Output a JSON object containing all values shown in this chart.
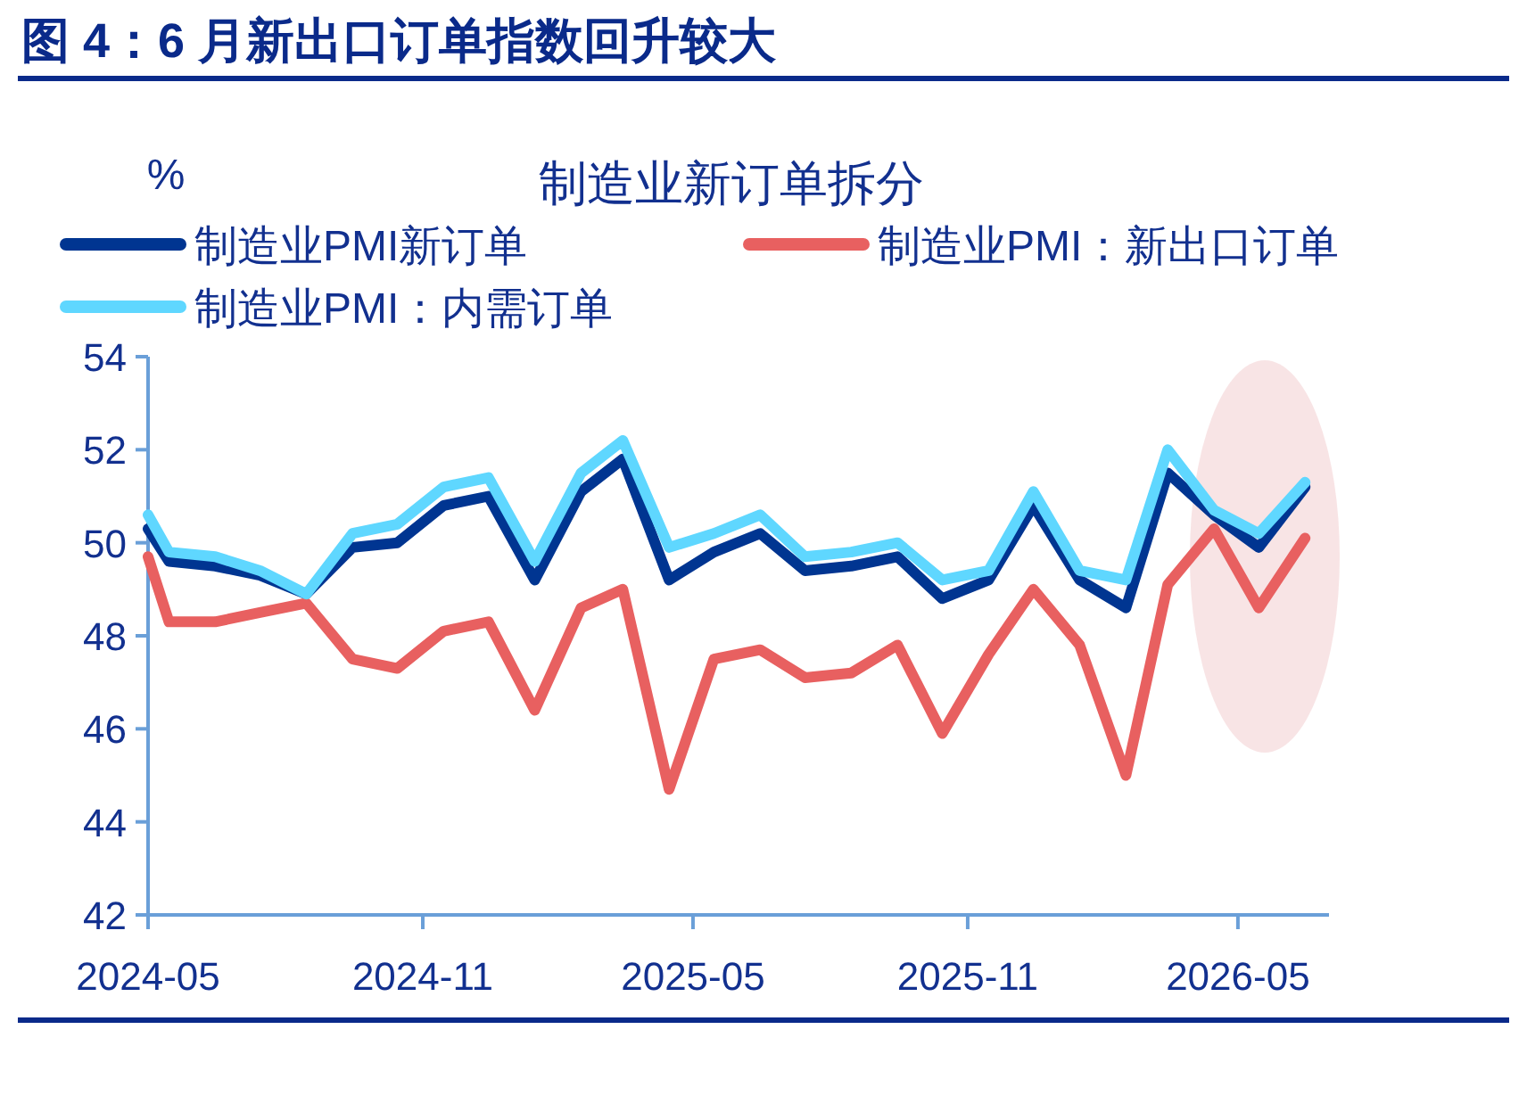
{
  "chart_data": {
    "type": "line",
    "title": "图 4：6 月新出口订单指数回升较大",
    "subtitle": "制造业新订单拆分",
    "ylabel": "%",
    "x": [
      "2024-05-01",
      "2024-05-15",
      "2024-06-15",
      "2024-07-15",
      "2024-08-15",
      "2024-09-15",
      "2024-10-15",
      "2024-11-15",
      "2024-12-15",
      "2025-01-15",
      "2025-02-15",
      "2025-03-15",
      "2025-04-15",
      "2025-05-15",
      "2025-06-15",
      "2025-07-15",
      "2025-08-15",
      "2025-09-15",
      "2025-10-15",
      "2025-11-15",
      "2025-12-15",
      "2026-01-15",
      "2026-02-15",
      "2026-03-15",
      "2026-04-15",
      "2026-05-15",
      "2026-06-15"
    ],
    "series": [
      {
        "name": "制造业PMI新订单",
        "color": "#003591",
        "values": [
          50.3,
          49.6,
          49.5,
          49.3,
          48.9,
          49.9,
          50.0,
          50.8,
          51.0,
          49.2,
          51.1,
          51.8,
          49.2,
          49.8,
          50.2,
          49.4,
          49.5,
          49.7,
          48.8,
          49.2,
          50.8,
          49.2,
          48.6,
          51.5,
          50.6,
          49.9,
          51.2
        ]
      },
      {
        "name": "制造业PMI：新出口订单",
        "color": "#e86060",
        "values": [
          49.7,
          48.3,
          48.3,
          48.5,
          48.7,
          47.5,
          47.3,
          48.1,
          48.3,
          46.4,
          48.6,
          49.0,
          44.7,
          47.5,
          47.7,
          47.1,
          47.2,
          47.8,
          45.9,
          47.6,
          49.0,
          47.8,
          45.0,
          49.1,
          50.3,
          48.6,
          50.1
        ]
      },
      {
        "name": "制造业PMI：内需订单",
        "color": "#5fd7ff",
        "values": [
          50.6,
          49.8,
          49.7,
          49.4,
          48.9,
          50.2,
          50.4,
          51.2,
          51.4,
          49.6,
          51.5,
          52.2,
          49.9,
          50.2,
          50.6,
          49.7,
          49.8,
          50.0,
          49.2,
          49.4,
          51.1,
          49.4,
          49.2,
          52.0,
          50.7,
          50.2,
          51.3
        ]
      }
    ],
    "xlim": [
      "2024-05-01",
      "2026-07-01"
    ],
    "xticks": [
      "2024-05",
      "2024-11",
      "2025-05",
      "2025-11",
      "2026-05"
    ],
    "ylim": [
      42,
      54
    ],
    "yticks": [
      42,
      44,
      46,
      48,
      50,
      52,
      54
    ],
    "grid": false,
    "legend": "top",
    "marker": "none",
    "line_style": "solid"
  }
}
